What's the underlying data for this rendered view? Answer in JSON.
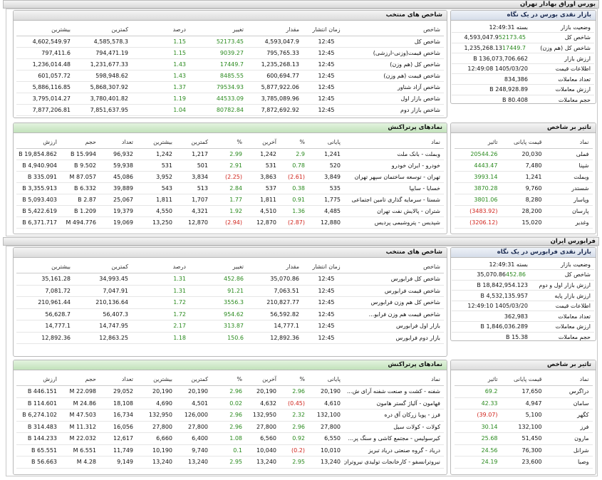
{
  "sections": [
    {
      "title": "بورس اوراق بهادار تهران",
      "summary": {
        "title": "بازار نقدی بورس در یک نگاه",
        "rows": [
          {
            "label": "وضعیت بازار",
            "value": "بسته 12:49:31"
          },
          {
            "label": "شاخص کل",
            "value": "4,593,047.9",
            "change": "52173.45"
          },
          {
            "label": "شاخص کل (هم وزن)",
            "value": "1,235,268.13",
            "change": "17449.7"
          },
          {
            "label": "ارزش بازار",
            "value": "136,073,706.662 B"
          },
          {
            "label": "اطلاعات قیمت",
            "value": "1405/03/20 12:49:08"
          },
          {
            "label": "تعداد معاملات",
            "value": "834,386"
          },
          {
            "label": "ارزش معاملات",
            "value": "248,928.89 B"
          },
          {
            "label": "حجم معاملات",
            "value": "80.408 B"
          }
        ]
      },
      "indices": {
        "title": "شاخص های منتخب",
        "headers": [
          "شاخص",
          "زمان انتشار",
          "مقدار",
          "تغییر",
          "درصد",
          "کمترین",
          "بیشترین"
        ],
        "rows": [
          [
            "شاخص کل",
            "12:45",
            "4,593,047.9",
            "52173.45",
            "1.15",
            "4,585,578.3",
            "4,602,549.97"
          ],
          [
            "شاخص قیمت(وزنی-ارزشی)",
            "12:45",
            "795,765.33",
            "9039.27",
            "1.15",
            "794,471.19",
            "797,411.6"
          ],
          [
            "شاخص کل (هم وزن)",
            "12:45",
            "1,235,268.13",
            "17449.7",
            "1.43",
            "1,231,677.33",
            "1,236,014.48"
          ],
          [
            "شاخص قیمت (هم وزن)",
            "12:45",
            "600,694.77",
            "8485.55",
            "1.43",
            "598,948.62",
            "601,057.72"
          ],
          [
            "شاخص آزاد شناور",
            "12:45",
            "5,877,922.06",
            "79534.93",
            "1.37",
            "5,868,307.92",
            "5,886,116.85"
          ],
          [
            "شاخص بازار اول",
            "12:45",
            "3,785,089.96",
            "44533.09",
            "1.19",
            "3,780,401.82",
            "3,795,014.27"
          ],
          [
            "شاخص بازار دوم",
            "12:45",
            "7,872,692.92",
            "80782.84",
            "1.04",
            "7,851,637.95",
            "7,877,206.81"
          ]
        ]
      },
      "symbols": {
        "title": "نمادهای پرتراکنش",
        "headers": [
          "نماد",
          "پایانی",
          "%",
          "آخرین",
          "%",
          "کمترین",
          "بیشترین",
          "تعداد",
          "حجم",
          "ارزش"
        ],
        "rows": [
          [
            "وبملت - بانک ملت",
            "1,241",
            "2.9",
            "1,242",
            "2.99",
            "1,217",
            "1,242",
            "96,932",
            "15.994 B",
            "19,854.862 B"
          ],
          [
            "خودرو - ایران خودرو",
            "520",
            "0.78",
            "531",
            "2.91",
            "501",
            "531",
            "59,938",
            "9.502 B",
            "4,940.904 B"
          ],
          [
            "تهران - توسعه ساختمان سپهر تهران",
            "3,849",
            "(2.61)",
            "3,863",
            "(2.25)",
            "3,834",
            "3,952",
            "45,086",
            "87.057 M",
            "335.091 B"
          ],
          [
            "خسایا - سایپا",
            "535",
            "0.38",
            "537",
            "2.84",
            "513",
            "543",
            "39,889",
            "6.332 B",
            "3,355.913 B"
          ],
          [
            "شستا - سرمایه گذاری تامین اجتماعی",
            "1,775",
            "0.91",
            "1,811",
            "1.77",
            "1,707",
            "1,811",
            "25,067",
            "2.87 B",
            "5,093.403 B"
          ],
          [
            "شتران - پالایش نفت تهران",
            "4,485",
            "1.36",
            "4,510",
            "1.92",
            "4,321",
            "4,550",
            "19,379",
            "1.209 B",
            "5,422.619 B"
          ],
          [
            "شپدیس - پتروشیمی پردیس",
            "12,880",
            "(2.87)",
            "12,870",
            "(2.94)",
            "12,870",
            "13,250",
            "19,069",
            "494.776 M",
            "6,371.717 B"
          ]
        ]
      },
      "impact": {
        "title": "تاثیر بر شاخص",
        "headers": [
          "نماد",
          "قیمت پایانی",
          "تاثیر"
        ],
        "rows": [
          [
            "فملی",
            "20,030",
            "20544.26"
          ],
          [
            "شپنا",
            "7,480",
            "4443.47"
          ],
          [
            "وبملت",
            "1,241",
            "3993.14"
          ],
          [
            "شستدر",
            "9,760",
            "3870.28"
          ],
          [
            "وپاسار",
            "8,280",
            "3801.06"
          ],
          [
            "پارسان",
            "28,200",
            "(3483.92)"
          ],
          [
            "وغدیر",
            "15,020",
            "(3206.12)"
          ]
        ]
      }
    },
    {
      "title": "فرابورس ایران",
      "summary": {
        "title": "بازار نقدی فرابورس در یک نگاه",
        "rows": [
          {
            "label": "وضعیت بازار",
            "value": "بسته 12:49:31"
          },
          {
            "label": "شاخص کل",
            "value": "35,070.86",
            "change": "452.86"
          },
          {
            "label": "ارزش بازار اول و دوم",
            "value": "18,842,954.123 B"
          },
          {
            "label": "ارزش بازار پایه",
            "value": "4,532,135.957 B"
          },
          {
            "label": "اطلاعات قیمت",
            "value": "1405/03/20 12:49:10"
          },
          {
            "label": "تعداد معاملات",
            "value": "362,983"
          },
          {
            "label": "ارزش معاملات",
            "value": "1,846,036.289 B"
          },
          {
            "label": "حجم معاملات",
            "value": "15.38 B"
          }
        ]
      },
      "indices": {
        "title": "شاخص های منتخب",
        "headers": [
          "شاخص",
          "زمان انتشار",
          "مقدار",
          "تغییر",
          "درصد",
          "کمترین",
          "بیشترین"
        ],
        "rows": [
          [
            "شاخص کل فرابورس",
            "12:45",
            "35,070.86",
            "452.86",
            "1.31",
            "34,993.45",
            "35,161.28"
          ],
          [
            "شاخص قیمت فرابورس",
            "12:45",
            "7,063.51",
            "91.21",
            "1.31",
            "7,047.91",
            "7,081.72"
          ],
          [
            "شاخص کل هم وزن فرابورس",
            "12:45",
            "210,827.77",
            "3556.3",
            "1.72",
            "210,136.64",
            "210,961.44"
          ],
          [
            "شاخص قیمت هم وزن فرابو...",
            "12:45",
            "56,592.82",
            "954.62",
            "1.72",
            "56,407.3",
            "56,628.7"
          ],
          [
            "بازار اول فرابورس",
            "12:45",
            "14,777.1",
            "313.87",
            "2.17",
            "14,747.95",
            "14,777.1"
          ],
          [
            "بازار دوم فرابورس",
            "12:45",
            "12,892.36",
            "150.6",
            "1.18",
            "12,863.25",
            "12,892.36"
          ]
        ]
      },
      "symbols": {
        "title": "نمادهای پرتراکنش",
        "headers": [
          "نماد",
          "پایانی",
          "%",
          "آخرین",
          "%",
          "کمترین",
          "بیشترین",
          "تعداد",
          "حجم",
          "ارزش"
        ],
        "rows": [
          [
            "شفنه - کشت و صنعت شفنه آرای ش...",
            "20,190",
            "2.96",
            "20,190",
            "2.96",
            "20,190",
            "20,190",
            "29,052",
            "22.098 M",
            "446.151 B"
          ],
          [
            "فهامون - آلیاژ گستر هامون",
            "4,610",
            "(0.45)",
            "4,632",
            "0.02",
            "4,501",
            "4,690",
            "18,108",
            "24.86 M",
            "114.601 B"
          ],
          [
            "فرز - پویا زرکان آق دره",
            "132,100",
            "2.32",
            "132,950",
            "2.96",
            "126,000",
            "132,950",
            "16,734",
            "47.503 M",
            "6,274.102 B"
          ],
          [
            "کولات - کولات سیل",
            "27,800",
            "2.96",
            "27,800",
            "2.96",
            "27,800",
            "27,800",
            "16,056",
            "11.312 M",
            "314.483 B"
          ],
          [
            "کیرسولیس - مجتمع کاشی و سنگ پر...",
            "6,550",
            "0.92",
            "6,560",
            "1.08",
            "6,400",
            "6,660",
            "12,617",
            "22.032 M",
            "144.233 B"
          ],
          [
            "دریاد - گروه صنعتی دریاد تبریز",
            "10,010",
            "(0.2)",
            "10,040",
            "0.1",
            "9,740",
            "10,190",
            "11,749",
            "6.551 M",
            "65.551 B"
          ],
          [
            "نیروترانسفو - کارخانجات تولیدی نیروتران...",
            "13,240",
            "2.95",
            "13,240",
            "2.95",
            "13,240",
            "13,240",
            "9,149",
            "4.28 M",
            "56.663 B"
          ]
        ]
      },
      "impact": {
        "title": "تاثیر بر شاخص",
        "headers": [
          "نماد",
          "قیمت پایانی",
          "تاثیر"
        ],
        "rows": [
          [
            "دراگرس",
            "17,650",
            "69.2"
          ],
          [
            "سامان",
            "4,947",
            "42.33"
          ],
          [
            "کگهر",
            "5,100",
            "(39.07)"
          ],
          [
            "فرز",
            "132,100",
            "30.14"
          ],
          [
            "مارون",
            "51,450",
            "25.68"
          ],
          [
            "شرانل",
            "76,300",
            "24.56"
          ],
          [
            "وصبا",
            "23,600",
            "24.19"
          ]
        ]
      }
    }
  ]
}
